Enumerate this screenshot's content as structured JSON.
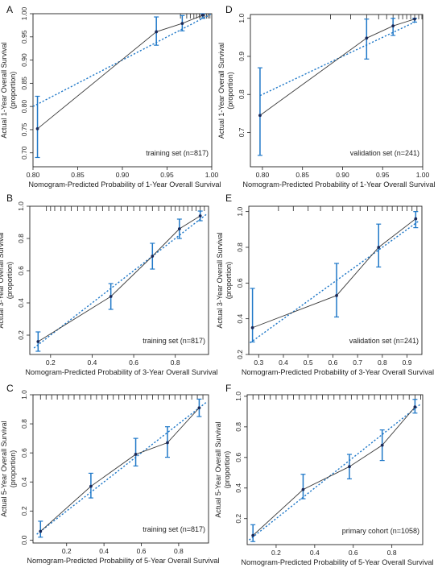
{
  "chart_data": [
    {
      "type": "line",
      "panel": "A",
      "xlabel": "Nomogram-Predicted Probability of 1-Year Overall Survival",
      "ylabel_lines": [
        "Actual 1-Year   Overall Survival",
        "(proportion)"
      ],
      "annotation": "training  set (n=817)",
      "xlim": [
        0.8,
        1.0
      ],
      "ylim": [
        0.67,
        1.0
      ],
      "xticks": [
        0.8,
        0.85,
        0.9,
        0.95,
        1.0
      ],
      "xtick_labels": [
        "0.80",
        "0.85",
        "0.90",
        "0.95",
        "1.00"
      ],
      "yticks": [
        0.7,
        0.75,
        0.8,
        0.85,
        0.9,
        0.95,
        1.0
      ],
      "ytick_labels": [
        "0.70",
        "0.75",
        "0.80",
        "0.85",
        "0.90",
        "0.95",
        "1.00"
      ],
      "series": [
        {
          "role": "observed",
          "x": [
            0.805,
            0.938,
            0.967,
            0.99
          ],
          "y": [
            0.752,
            0.961,
            0.979,
            0.997
          ],
          "lower": [
            0.69,
            0.932,
            0.963,
            0.99
          ],
          "upper": [
            0.822,
            0.993,
            0.996,
            1.0
          ]
        },
        {
          "role": "bias-corrected",
          "x": [
            0.8,
            1.0
          ],
          "y": [
            0.8,
            1.0
          ]
        }
      ],
      "rug": [
        0.965,
        0.972,
        0.976,
        0.98,
        0.983,
        0.986,
        0.988,
        0.99,
        0.992,
        0.994,
        0.996,
        0.998
      ]
    },
    {
      "type": "line",
      "panel": "D",
      "xlabel": "Nomogram-Predicted Probability of 1-Year Overall Survival",
      "ylabel_lines": [
        "Actual 1-Year   Overall Survival",
        "(proportion)"
      ],
      "annotation": "validation set (n=241)",
      "xlim": [
        0.785,
        1.0
      ],
      "ylim": [
        0.61,
        1.01
      ],
      "xticks": [
        0.8,
        0.85,
        0.9,
        0.95,
        1.0
      ],
      "xtick_labels": [
        "0.80",
        "0.85",
        "0.90",
        "0.95",
        "1.00"
      ],
      "yticks": [
        0.7,
        0.8,
        0.9,
        1.0
      ],
      "ytick_labels": [
        "0.7",
        "0.8",
        "0.9",
        "1.0"
      ],
      "series": [
        {
          "role": "observed",
          "x": [
            0.797,
            0.93,
            0.963,
            0.99
          ],
          "y": [
            0.745,
            0.948,
            0.98,
            0.998
          ],
          "lower": [
            0.64,
            0.893,
            0.955,
            0.99
          ],
          "upper": [
            0.87,
            0.998,
            1.0,
            1.0
          ]
        },
        {
          "role": "bias-corrected",
          "x": [
            0.797,
            0.99
          ],
          "y": [
            0.797,
            0.99
          ]
        }
      ],
      "rug": [
        0.885,
        0.91,
        0.93,
        0.945,
        0.955,
        0.963,
        0.97,
        0.975,
        0.98,
        0.985,
        0.99,
        0.995,
        0.999
      ]
    },
    {
      "type": "line",
      "panel": "B",
      "xlabel": "Nomogram-Predicted Probability of 3-Year Overall Survival",
      "ylabel_lines": [
        "Actual 3-Year   Overall Survival",
        "(proportion)"
      ],
      "annotation": "training  set (n=817)",
      "xlim": [
        0.1,
        0.96
      ],
      "ylim": [
        0.08,
        1.0
      ],
      "xticks": [
        0.2,
        0.4,
        0.6,
        0.8
      ],
      "xtick_labels": [
        "0.2",
        "0.4",
        "0.6",
        "0.8"
      ],
      "yticks": [
        0.2,
        0.4,
        0.6,
        0.8,
        1.0
      ],
      "ytick_labels": [
        "0.2",
        "0.4",
        "0.6",
        "0.8",
        "1.0"
      ],
      "series": [
        {
          "role": "observed",
          "x": [
            0.14,
            0.49,
            0.69,
            0.82,
            0.92
          ],
          "y": [
            0.16,
            0.44,
            0.69,
            0.86,
            0.94
          ],
          "lower": [
            0.1,
            0.36,
            0.61,
            0.8,
            0.91
          ],
          "upper": [
            0.22,
            0.52,
            0.77,
            0.92,
            0.97
          ]
        },
        {
          "role": "bias-corrected",
          "x": [
            0.12,
            0.95
          ],
          "y": [
            0.12,
            0.95
          ]
        }
      ],
      "rug": [
        0.18,
        0.2,
        0.22,
        0.25,
        0.27,
        0.3,
        0.33,
        0.36,
        0.39,
        0.42,
        0.45,
        0.48,
        0.51,
        0.54,
        0.57,
        0.6,
        0.63,
        0.66,
        0.69,
        0.72,
        0.75,
        0.78,
        0.8,
        0.82,
        0.84,
        0.86,
        0.88,
        0.9,
        0.92,
        0.94
      ]
    },
    {
      "type": "line",
      "panel": "E",
      "xlabel": "Nomogram-Predicted Probability of 3-Year Overall Survival",
      "ylabel_lines": [
        "Actual 3-Year   Overall Survival",
        "(proportion)"
      ],
      "annotation": "validation set (n=241)",
      "xlim": [
        0.26,
        0.96
      ],
      "ylim": [
        0.2,
        1.03
      ],
      "xticks": [
        0.3,
        0.4,
        0.5,
        0.6,
        0.7,
        0.8,
        0.9
      ],
      "xtick_labels": [
        "0.3",
        "0.4",
        "0.5",
        "0.6",
        "0.7",
        "0.8",
        "0.9"
      ],
      "yticks": [
        0.2,
        0.4,
        0.6,
        0.8,
        1.0
      ],
      "ytick_labels": [
        "0.2",
        "0.4",
        "0.6",
        "0.8",
        "1.0"
      ],
      "series": [
        {
          "role": "observed",
          "x": [
            0.275,
            0.615,
            0.785,
            0.935
          ],
          "y": [
            0.35,
            0.53,
            0.8,
            0.96
          ],
          "lower": [
            0.27,
            0.41,
            0.69,
            0.91
          ],
          "upper": [
            0.57,
            0.71,
            0.93,
            1.0
          ]
        },
        {
          "role": "bias-corrected",
          "x": [
            0.265,
            0.95
          ],
          "y": [
            0.265,
            0.95
          ]
        }
      ],
      "rug": [
        0.38,
        0.44,
        0.5,
        0.55,
        0.6,
        0.64,
        0.68,
        0.71,
        0.74,
        0.77,
        0.8,
        0.82,
        0.84,
        0.86,
        0.88,
        0.9,
        0.92,
        0.94
      ]
    },
    {
      "type": "line",
      "panel": "C",
      "xlabel": "Nomogram-Predicted Probability of 5-Year Overall Survival",
      "ylabel_lines": [
        "Actual 5-Year   Overall Survival",
        "(proportion)"
      ],
      "annotation": "training  set (n=817)",
      "xlim": [
        0.02,
        0.96
      ],
      "ylim": [
        -0.02,
        1.0
      ],
      "xticks": [
        0.2,
        0.4,
        0.6,
        0.8
      ],
      "xtick_labels": [
        "0.2",
        "0.4",
        "0.6",
        "0.8"
      ],
      "yticks": [
        0.0,
        0.2,
        0.4,
        0.6,
        0.8,
        1.0
      ],
      "ytick_labels": [
        "0.0",
        "0.2",
        "0.4",
        "0.6",
        "0.8",
        "1.0"
      ],
      "series": [
        {
          "role": "observed",
          "x": [
            0.06,
            0.33,
            0.57,
            0.74,
            0.91
          ],
          "y": [
            0.06,
            0.37,
            0.59,
            0.67,
            0.91
          ],
          "lower": [
            0.02,
            0.29,
            0.51,
            0.57,
            0.85
          ],
          "upper": [
            0.13,
            0.46,
            0.7,
            0.78,
            0.97
          ]
        },
        {
          "role": "bias-corrected",
          "x": [
            0.04,
            0.95
          ],
          "y": [
            0.04,
            0.95
          ]
        }
      ],
      "rug": [
        0.06,
        0.09,
        0.12,
        0.15,
        0.18,
        0.21,
        0.24,
        0.27,
        0.3,
        0.33,
        0.36,
        0.39,
        0.42,
        0.45,
        0.48,
        0.51,
        0.54,
        0.57,
        0.6,
        0.63,
        0.66,
        0.69,
        0.72,
        0.75,
        0.78,
        0.81,
        0.84,
        0.87,
        0.9,
        0.93
      ]
    },
    {
      "type": "line",
      "panel": "F",
      "xlabel": "Nomogram-Predicted Probability of 5-Year Overall Survival",
      "ylabel_lines": [
        "Actual 5-Year   Overall Survival",
        "(proportion)"
      ],
      "annotation": "primary cohort (n=1058)",
      "xlim": [
        0.05,
        0.96
      ],
      "ylim": [
        0.03,
        1.01
      ],
      "xticks": [
        0.2,
        0.4,
        0.6,
        0.8
      ],
      "xtick_labels": [
        "0.2",
        "0.4",
        "0.6",
        "0.8"
      ],
      "yticks": [
        0.2,
        0.4,
        0.6,
        0.8,
        1.0
      ],
      "ytick_labels": [
        "0.2",
        "0.4",
        "0.6",
        "0.8",
        "1.0"
      ],
      "series": [
        {
          "role": "observed",
          "x": [
            0.08,
            0.34,
            0.58,
            0.75,
            0.92
          ],
          "y": [
            0.09,
            0.39,
            0.54,
            0.68,
            0.93
          ],
          "lower": [
            0.05,
            0.33,
            0.46,
            0.58,
            0.89
          ],
          "upper": [
            0.16,
            0.49,
            0.62,
            0.78,
            0.98
          ]
        },
        {
          "role": "bias-corrected",
          "x": [
            0.06,
            0.95
          ],
          "y": [
            0.06,
            0.95
          ]
        }
      ],
      "rug": [
        0.08,
        0.11,
        0.14,
        0.17,
        0.2,
        0.23,
        0.26,
        0.29,
        0.32,
        0.35,
        0.38,
        0.41,
        0.44,
        0.47,
        0.5,
        0.53,
        0.56,
        0.59,
        0.62,
        0.65,
        0.68,
        0.71,
        0.74,
        0.77,
        0.8,
        0.83,
        0.86,
        0.89,
        0.92,
        0.95
      ]
    }
  ],
  "colors": {
    "observed_line": "#3a3a3a",
    "error_bar": "#1f78c8",
    "ideal_line": "#1f78c8",
    "point": "#1a2a5a",
    "axis": "#222222"
  }
}
